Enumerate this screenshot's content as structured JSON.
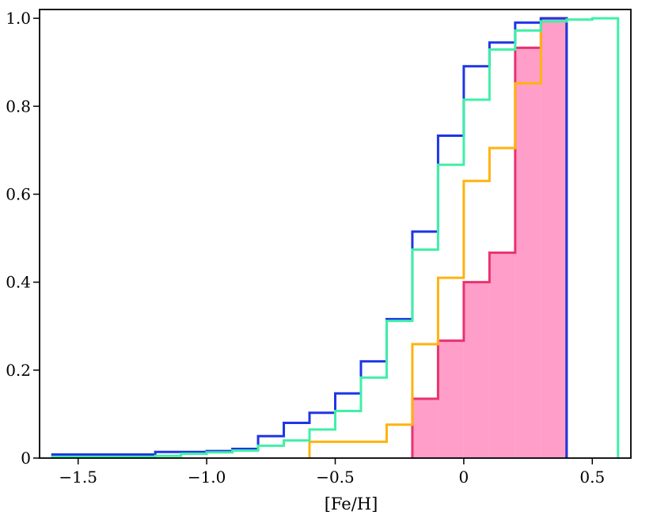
{
  "chart_data": {
    "type": "step-histogram-cumulative",
    "title": "",
    "xlabel": "[Fe/H]",
    "ylabel": "",
    "xlim": [
      -1.65,
      0.65
    ],
    "ylim": [
      0,
      1.02
    ],
    "x_ticks": [
      {
        "value": -1.5,
        "label": "−1.5"
      },
      {
        "value": -1.0,
        "label": "−1.0"
      },
      {
        "value": -0.5,
        "label": "−0.5"
      },
      {
        "value": 0.0,
        "label": "0"
      },
      {
        "value": 0.5,
        "label": "0.5"
      }
    ],
    "y_ticks": [
      {
        "value": 0.0,
        "label": "0"
      },
      {
        "value": 0.2,
        "label": "0.2"
      },
      {
        "value": 0.4,
        "label": "0.4"
      },
      {
        "value": 0.6,
        "label": "0.6"
      },
      {
        "value": 0.8,
        "label": "0.8"
      },
      {
        "value": 1.0,
        "label": "1.0"
      }
    ],
    "series": [
      {
        "name": "pink-filled",
        "color": "#e8336f",
        "fill": "#ff9ec8",
        "filled": true,
        "edges": [
          -0.2,
          -0.1,
          0.0,
          0.1,
          0.2,
          0.3,
          0.4
        ],
        "values": [
          0.135,
          0.267,
          0.4,
          0.467,
          0.933,
          1.0
        ]
      },
      {
        "name": "orange",
        "color": "#ffb30f",
        "filled": false,
        "edges": [
          -0.6,
          -0.5,
          -0.4,
          -0.3,
          -0.2,
          -0.1,
          0.0,
          0.1,
          0.2,
          0.3,
          0.4
        ],
        "values": [
          0.037,
          0.037,
          0.037,
          0.076,
          0.259,
          0.41,
          0.63,
          0.705,
          0.852,
          1.0
        ]
      },
      {
        "name": "blue",
        "color": "#1f35e6",
        "filled": false,
        "edges": [
          -1.6,
          -1.5,
          -1.4,
          -1.3,
          -1.2,
          -1.1,
          -1.0,
          -0.9,
          -0.8,
          -0.7,
          -0.6,
          -0.5,
          -0.4,
          -0.3,
          -0.2,
          -0.1,
          0.0,
          0.1,
          0.2,
          0.3,
          0.4
        ],
        "values": [
          0.008,
          0.008,
          0.008,
          0.008,
          0.014,
          0.014,
          0.016,
          0.021,
          0.05,
          0.08,
          0.103,
          0.147,
          0.22,
          0.316,
          0.515,
          0.733,
          0.891,
          0.945,
          0.99,
          1.0
        ]
      },
      {
        "name": "green",
        "color": "#3ff0a6",
        "filled": false,
        "edges": [
          -1.6,
          -1.5,
          -1.4,
          -1.3,
          -1.2,
          -1.1,
          -1.0,
          -0.9,
          -0.8,
          -0.7,
          -0.6,
          -0.5,
          -0.4,
          -0.3,
          -0.2,
          -0.1,
          0.0,
          0.1,
          0.2,
          0.3,
          0.4,
          0.5,
          0.6
        ],
        "values": [
          0.003,
          0.003,
          0.003,
          0.003,
          0.005,
          0.01,
          0.013,
          0.017,
          0.028,
          0.04,
          0.065,
          0.107,
          0.183,
          0.312,
          0.474,
          0.667,
          0.815,
          0.929,
          0.972,
          0.993,
          0.997,
          1.0
        ]
      }
    ]
  }
}
